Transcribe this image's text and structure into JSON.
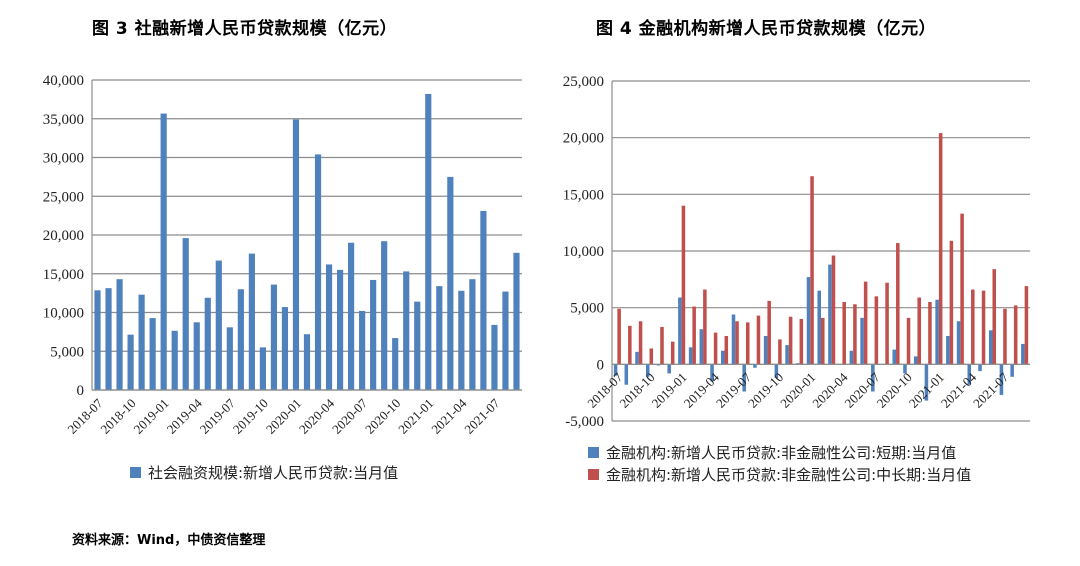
{
  "figure3": {
    "title": "图 3  社融新增人民币贷款规模（亿元）",
    "legend": "社会融资规模:新增人民币贷款:当月值",
    "color": "#4F81BD"
  },
  "figure4": {
    "title": "图 4  金融机构新增人民币贷款规模（亿元）",
    "legend_short": "金融机构:新增人民币贷款:非金融性公司:短期:当月值",
    "legend_long": "金融机构:新增人民币贷款:非金融性公司:中长期:当月值",
    "color_short": "#4F81BD",
    "color_long": "#C0504D"
  },
  "source": "资料来源：Wind，中债资信整理",
  "chart_data": [
    {
      "type": "bar",
      "title": "图 3 社融新增人民币贷款规模（亿元）",
      "xlabel": "",
      "ylabel": "",
      "ylim": [
        0,
        40000
      ],
      "yticks": [
        0,
        5000,
        10000,
        15000,
        20000,
        25000,
        30000,
        35000,
        40000
      ],
      "ytick_labels": [
        "0",
        "5,000",
        "10,000",
        "15,000",
        "20,000",
        "25,000",
        "30,000",
        "35,000",
        "40,000"
      ],
      "xtick_labels": [
        "2018-07",
        "2018-10",
        "2019-01",
        "2019-04",
        "2019-07",
        "2019-10",
        "2020-01",
        "2020-04",
        "2020-07",
        "2020-10",
        "2021-01",
        "2021-04",
        "2021-07"
      ],
      "grid": true,
      "legend_position": "bottom",
      "categories": [
        "2018-07",
        "2018-08",
        "2018-09",
        "2018-10",
        "2018-11",
        "2018-12",
        "2019-01",
        "2019-02",
        "2019-03",
        "2019-04",
        "2019-05",
        "2019-06",
        "2019-07",
        "2019-08",
        "2019-09",
        "2019-10",
        "2019-11",
        "2019-12",
        "2020-01",
        "2020-02",
        "2020-03",
        "2020-04",
        "2020-05",
        "2020-06",
        "2020-07",
        "2020-08",
        "2020-09",
        "2020-10",
        "2020-11",
        "2020-12",
        "2021-01",
        "2021-02",
        "2021-03",
        "2021-04",
        "2021-05",
        "2021-06",
        "2021-07",
        "2021-08",
        "2021-09"
      ],
      "series": [
        {
          "name": "社会融资规模:新增人民币贷款:当月值",
          "values": [
            12861,
            13140,
            14300,
            7141,
            12300,
            9281,
            35668,
            7641,
            19600,
            8733,
            11900,
            16700,
            8086,
            13000,
            17600,
            5500,
            13600,
            10700,
            34900,
            7200,
            30400,
            16200,
            15500,
            19000,
            10200,
            14200,
            19200,
            6700,
            15300,
            11400,
            38200,
            13400,
            27500,
            12800,
            14300,
            23100,
            8400,
            12700,
            17700
          ]
        }
      ]
    },
    {
      "type": "bar",
      "title": "图 4 金融机构新增人民币贷款规模（亿元）",
      "xlabel": "",
      "ylabel": "",
      "ylim": [
        -5000,
        25000
      ],
      "yticks": [
        -5000,
        0,
        5000,
        10000,
        15000,
        20000,
        25000
      ],
      "ytick_labels": [
        "-5,000",
        "0",
        "5,000",
        "10,000",
        "15,000",
        "20,000",
        "25,000"
      ],
      "xtick_labels": [
        "2018-07",
        "2018-10",
        "2019-01",
        "2019-04",
        "2019-07",
        "2019-10",
        "2020-01",
        "2020-04",
        "2020-07",
        "2020-10",
        "2021-01",
        "2021-04",
        "2021-07"
      ],
      "grid": true,
      "legend_position": "bottom",
      "categories": [
        "2018-07",
        "2018-08",
        "2018-09",
        "2018-10",
        "2018-11",
        "2018-12",
        "2019-01",
        "2019-02",
        "2019-03",
        "2019-04",
        "2019-05",
        "2019-06",
        "2019-07",
        "2019-08",
        "2019-09",
        "2019-10",
        "2019-11",
        "2019-12",
        "2020-01",
        "2020-02",
        "2020-03",
        "2020-04",
        "2020-05",
        "2020-06",
        "2020-07",
        "2020-08",
        "2020-09",
        "2020-10",
        "2020-11",
        "2020-12",
        "2021-01",
        "2021-02",
        "2021-03",
        "2021-04",
        "2021-05",
        "2021-06",
        "2021-07",
        "2021-08",
        "2021-09"
      ],
      "series": [
        {
          "name": "金融机构:新增人民币贷款:非金融性公司:短期:当月值",
          "values": [
            -1000,
            -1800,
            1100,
            -1100,
            -100,
            -800,
            5900,
            1500,
            3100,
            -1500,
            1200,
            4400,
            -2400,
            -300,
            2500,
            -1200,
            1700,
            100,
            7700,
            6500,
            8800,
            0,
            1200,
            4100,
            -2400,
            0,
            1300,
            -800,
            700,
            -3200,
            5700,
            2500,
            3800,
            -1800,
            -600,
            3000,
            -2700,
            -1100,
            1800
          ]
        },
        {
          "name": "金融机构:新增人民币贷款:非金融性公司:中长期:当月值",
          "values": [
            4900,
            3400,
            3800,
            1400,
            3300,
            2000,
            14000,
            5100,
            6600,
            2800,
            2500,
            3800,
            3700,
            4300,
            5600,
            2200,
            4200,
            4000,
            16600,
            4100,
            9600,
            5500,
            5300,
            7300,
            6000,
            7200,
            10700,
            4100,
            5900,
            5500,
            20400,
            10900,
            13300,
            6600,
            6500,
            8400,
            4900,
            5200,
            6900
          ]
        }
      ]
    }
  ]
}
